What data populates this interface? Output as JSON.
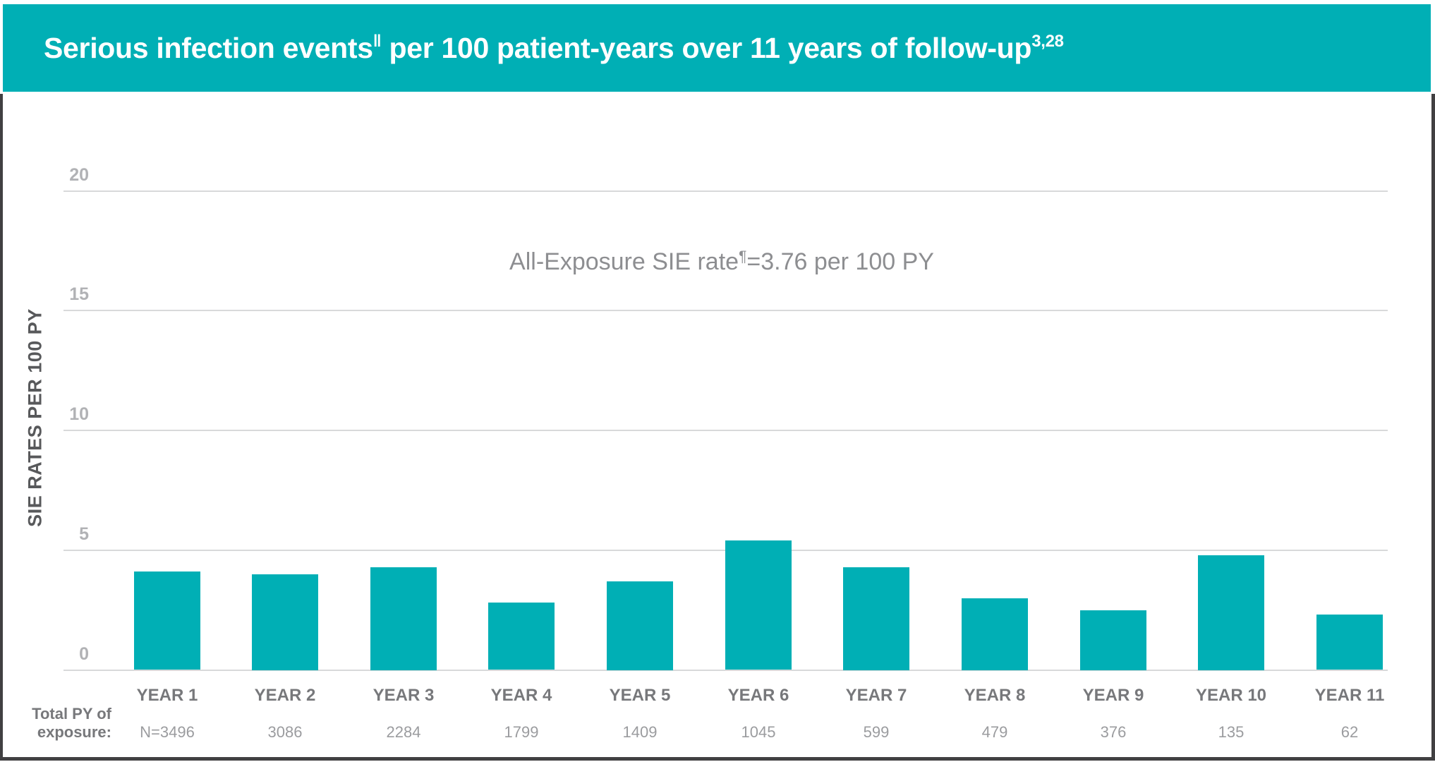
{
  "header": {
    "title_main": "Serious infection events",
    "title_sup1": "‖",
    "title_mid": " per 100 patient-years over 11 years of follow-up",
    "title_sup2": "3,28"
  },
  "colors": {
    "header_teal": "#00AFB5",
    "bar_teal": "#00AFB5",
    "gridline_gray": "#D8D9DA",
    "tick_gray": "#B1B2B5",
    "category_gray": "#77787B",
    "value_gray": "#9B9C9F",
    "axis_title_gray": "#58595B",
    "annotation_gray": "#8D8E91",
    "frame_border": "#414042",
    "title_white": "#FFFFFF"
  },
  "chart_data": {
    "type": "bar",
    "title": "Serious infection events per 100 patient-years over 11 years of follow-up",
    "ylabel": "SIE RATES PER 100 PY",
    "xlabel": "",
    "ylim": [
      0,
      22
    ],
    "yticks": [
      20,
      15,
      10,
      5,
      0
    ],
    "grid": true,
    "legend": false,
    "categories": [
      "YEAR 1",
      "YEAR 2",
      "YEAR 3",
      "YEAR 4",
      "YEAR 5",
      "YEAR 6",
      "YEAR 7",
      "YEAR 8",
      "YEAR 9",
      "YEAR 10",
      "YEAR 11"
    ],
    "values": [
      4.1,
      4.0,
      4.3,
      2.8,
      3.7,
      5.4,
      4.3,
      3.0,
      2.5,
      4.8,
      2.3
    ],
    "annotation": {
      "pre": "All-Exposure SIE rate",
      "sup": "¶",
      "post": "=3.76 per 100 PY"
    },
    "exposure_row": {
      "label_line1": "Total PY of",
      "label_line2": "exposure:",
      "values": [
        "N=3496",
        "3086",
        "2284",
        "1799",
        "1409",
        "1045",
        "599",
        "479",
        "376",
        "135",
        "62"
      ]
    }
  }
}
